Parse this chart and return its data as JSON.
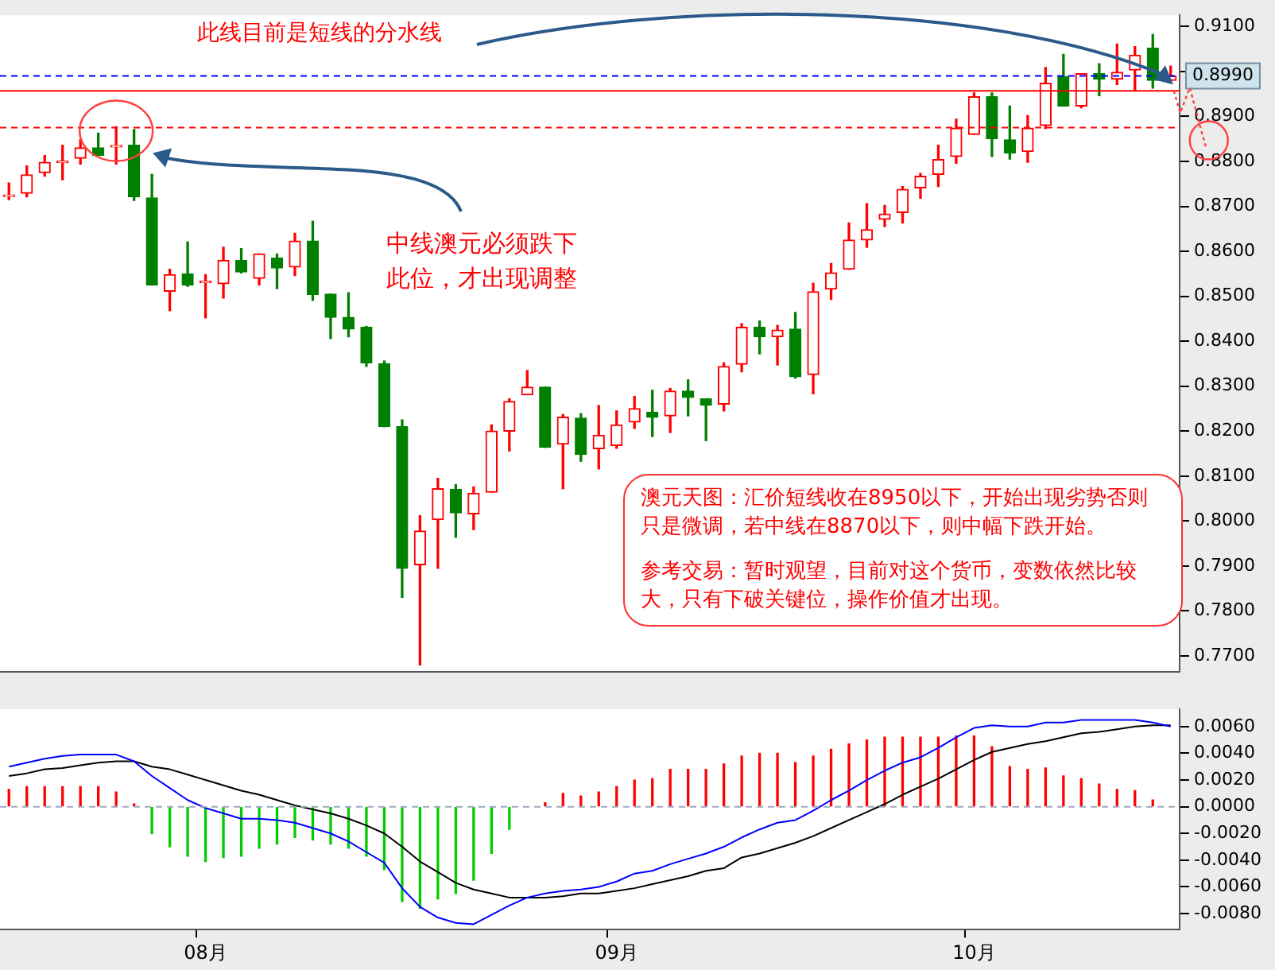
{
  "chart_data": [
    {
      "type": "candlestick",
      "categories": [
        null,
        null,
        null,
        null,
        null,
        null,
        null,
        null,
        null,
        null,
        null,
        null,
        null,
        null,
        null,
        null,
        null,
        null,
        null,
        null,
        null,
        null,
        null,
        null,
        null,
        null,
        null,
        null,
        null,
        null,
        null,
        null,
        null,
        null,
        null,
        null,
        null,
        null,
        null,
        null,
        null,
        null,
        null,
        null,
        null,
        null,
        null,
        null,
        null,
        null,
        null,
        null,
        null,
        null,
        null,
        null,
        null,
        null,
        null,
        null,
        null,
        null,
        null,
        null,
        null,
        null
      ],
      "ohlc": [
        [
          0.8722,
          0.8752,
          0.8715,
          0.8724
        ],
        [
          0.8729,
          0.879,
          0.8721,
          0.877
        ],
        [
          0.8775,
          0.8813,
          0.8767,
          0.8798
        ],
        [
          0.8797,
          0.8836,
          0.8759,
          0.88
        ],
        [
          0.8807,
          0.8848,
          0.8794,
          0.883
        ],
        [
          0.883,
          0.8863,
          0.8813,
          0.8813
        ],
        [
          0.8832,
          0.8877,
          0.8794,
          0.8834
        ],
        [
          0.8836,
          0.8871,
          0.8713,
          0.8721
        ],
        [
          0.8719,
          0.8771,
          0.8525,
          0.8525
        ],
        [
          0.8511,
          0.856,
          0.8468,
          0.8548
        ],
        [
          0.855,
          0.8621,
          0.8522,
          0.8525
        ],
        [
          0.853,
          0.8548,
          0.8452,
          0.8532
        ],
        [
          0.8528,
          0.8609,
          0.8496,
          0.858
        ],
        [
          0.858,
          0.8606,
          0.8552,
          0.8554
        ],
        [
          0.854,
          0.8594,
          0.8525,
          0.8594
        ],
        [
          0.8585,
          0.8594,
          0.8517,
          0.8563
        ],
        [
          0.8565,
          0.864,
          0.8546,
          0.8623
        ],
        [
          0.8623,
          0.8667,
          0.8491,
          0.8504
        ],
        [
          0.8505,
          0.8505,
          0.8406,
          0.8453
        ],
        [
          0.8453,
          0.8508,
          0.841,
          0.8427
        ],
        [
          0.8431,
          0.8433,
          0.8344,
          0.8352
        ],
        [
          0.835,
          0.8356,
          0.821,
          0.821
        ],
        [
          0.821,
          0.8225,
          0.783,
          0.7895
        ],
        [
          0.7903,
          0.8012,
          0.768,
          0.7978
        ],
        [
          0.8003,
          0.8095,
          0.7895,
          0.8072
        ],
        [
          0.807,
          0.8081,
          0.7964,
          0.8018
        ],
        [
          0.8016,
          0.8076,
          0.7981,
          0.8062
        ],
        [
          0.8064,
          0.8214,
          0.8064,
          0.82
        ],
        [
          0.82,
          0.8272,
          0.8156,
          0.8266
        ],
        [
          0.8281,
          0.8335,
          0.8281,
          0.8298
        ],
        [
          0.8298,
          0.8298,
          0.8164,
          0.8164
        ],
        [
          0.8171,
          0.8237,
          0.8072,
          0.8231
        ],
        [
          0.8229,
          0.8239,
          0.8133,
          0.8148
        ],
        [
          0.8161,
          0.8257,
          0.8116,
          0.8191
        ],
        [
          0.8168,
          0.8245,
          0.8162,
          0.8214
        ],
        [
          0.822,
          0.8277,
          0.8206,
          0.825
        ],
        [
          0.8242,
          0.8291,
          0.8188,
          0.8231
        ],
        [
          0.8234,
          0.8295,
          0.8197,
          0.8289
        ],
        [
          0.8289,
          0.8314,
          0.8234,
          0.8275
        ],
        [
          0.8272,
          0.8272,
          0.8179,
          0.8258
        ],
        [
          0.826,
          0.8352,
          0.8245,
          0.8344
        ],
        [
          0.8349,
          0.8439,
          0.8332,
          0.8431
        ],
        [
          0.8431,
          0.8445,
          0.8372,
          0.841
        ],
        [
          0.841,
          0.8435,
          0.8347,
          0.8425
        ],
        [
          0.8427,
          0.8464,
          0.8318,
          0.8321
        ],
        [
          0.8326,
          0.8529,
          0.8283,
          0.851
        ],
        [
          0.8516,
          0.8573,
          0.8493,
          0.8552
        ],
        [
          0.856,
          0.8663,
          0.856,
          0.8625
        ],
        [
          0.8625,
          0.8706,
          0.8609,
          0.8648
        ],
        [
          0.8671,
          0.8702,
          0.8655,
          0.8683
        ],
        [
          0.8686,
          0.8744,
          0.8663,
          0.8738
        ],
        [
          0.8741,
          0.8773,
          0.8718,
          0.8767
        ],
        [
          0.8771,
          0.8836,
          0.8744,
          0.8804
        ],
        [
          0.8811,
          0.8894,
          0.8796,
          0.8874
        ],
        [
          0.886,
          0.8952,
          0.886,
          0.8944
        ],
        [
          0.8944,
          0.8952,
          0.8811,
          0.885
        ],
        [
          0.8848,
          0.8923,
          0.8805,
          0.8819
        ],
        [
          0.8822,
          0.8902,
          0.8798,
          0.8874
        ],
        [
          0.888,
          0.9009,
          0.8873,
          0.8974
        ],
        [
          0.8989,
          0.9038,
          0.8923,
          0.8923
        ],
        [
          0.8923,
          0.8995,
          0.8919,
          0.8995
        ],
        [
          0.8995,
          0.9017,
          0.8946,
          0.8983
        ],
        [
          0.8983,
          0.9061,
          0.8971,
          0.8998
        ],
        [
          0.9003,
          0.9055,
          0.8957,
          0.9036
        ],
        [
          0.9052,
          0.9082,
          0.8963,
          0.898
        ],
        [
          0.898,
          0.9012,
          0.8977,
          0.899
        ]
      ],
      "colors": [
        "#ff0000",
        "#ff0000",
        "#ff0000",
        "#ff0000",
        "#ff0000",
        "#008000",
        "#ff0000",
        "#008000",
        "#008000",
        "#ff0000",
        "#008000",
        "#ff0000",
        "#ff0000",
        "#008000",
        "#ff0000",
        "#008000",
        "#ff0000",
        "#008000",
        "#008000",
        "#008000",
        "#008000",
        "#008000",
        "#008000",
        "#ff0000",
        "#ff0000",
        "#008000",
        "#ff0000",
        "#ff0000",
        "#ff0000",
        "#ff0000",
        "#008000",
        "#ff0000",
        "#008000",
        "#ff0000",
        "#ff0000",
        "#ff0000",
        "#008000",
        "#ff0000",
        "#008000",
        "#008000",
        "#ff0000",
        "#ff0000",
        "#008000",
        "#ff0000",
        "#008000",
        "#ff0000",
        "#ff0000",
        "#ff0000",
        "#ff0000",
        "#ff0000",
        "#ff0000",
        "#ff0000",
        "#ff0000",
        "#ff0000",
        "#ff0000",
        "#008000",
        "#008000",
        "#ff0000",
        "#ff0000",
        "#008000",
        "#ff0000",
        "#008000",
        "#ff0000",
        "#ff0000",
        "#008000",
        "#ff0000"
      ],
      "ylim": [
        0.7665,
        0.9125
      ],
      "yticks": [
        {
          "value": 0.77,
          "label": "0.7700"
        },
        {
          "value": 0.78,
          "label": "0.7800"
        },
        {
          "value": 0.79,
          "label": "0.7900"
        },
        {
          "value": 0.8,
          "label": "0.8000"
        },
        {
          "value": 0.81,
          "label": "0.8100"
        },
        {
          "value": 0.82,
          "label": "0.8200"
        },
        {
          "value": 0.83,
          "label": "0.8300"
        },
        {
          "value": 0.84,
          "label": "0.8400"
        },
        {
          "value": 0.85,
          "label": "0.8500"
        },
        {
          "value": 0.86,
          "label": "0.8600"
        },
        {
          "value": 0.87,
          "label": "0.8700"
        },
        {
          "value": 0.88,
          "label": "0.8800"
        },
        {
          "value": 0.89,
          "label": "0.8900"
        },
        {
          "value": 0.9,
          "label": null
        },
        {
          "value": 0.91,
          "label": "0.9100"
        }
      ],
      "tick_labels": "y",
      "ref_lines": [
        {
          "axis": "y",
          "value": 0.8875,
          "color": "#ff0000",
          "line_style": "dashed"
        },
        {
          "axis": "y",
          "value": 0.8957,
          "color": "#ff0000",
          "line_style": "solid"
        },
        {
          "axis": "y",
          "value": 0.899,
          "label": "0.8990",
          "color": "#0000ff",
          "line_style": "dashed"
        }
      ],
      "annotations": [
        "此线目前是短线的分水线",
        "中线澳元必须跌下此位，才出现调整",
        "澳元天图：汇价短线收在8950以下，开始出现劣势否则只是微调，若中线在8870以下，则中幅下跌开始。",
        "参考交易：暂时观望，目前对这个货币，变数依然比较大，只有下破关键位，操作价值才出现。"
      ]
    },
    {
      "type": "bar",
      "categories": [
        null,
        null,
        null,
        null,
        null,
        null,
        null,
        null,
        null,
        null,
        null,
        "08月",
        null,
        null,
        null,
        null,
        null,
        null,
        null,
        null,
        null,
        null,
        null,
        null,
        null,
        null,
        null,
        null,
        null,
        null,
        null,
        null,
        null,
        null,
        "09月",
        null,
        null,
        null,
        null,
        null,
        null,
        null,
        null,
        null,
        null,
        null,
        null,
        null,
        null,
        null,
        null,
        null,
        null,
        null,
        "10月",
        null,
        null,
        null,
        null,
        null,
        null,
        null,
        null,
        null,
        null,
        null
      ],
      "series": [
        {
          "type": "bar",
          "colors": [
            "#ff0000",
            "#ff0000",
            "#ff0000",
            "#ff0000",
            "#ff0000",
            "#ff0000",
            "#ff0000",
            "#ff0000",
            "#00cc00",
            "#00cc00",
            "#00cc00",
            "#00cc00",
            "#00cc00",
            "#00cc00",
            "#00cc00",
            "#00cc00",
            "#00cc00",
            "#00cc00",
            "#00cc00",
            "#00cc00",
            "#00cc00",
            "#00cc00",
            "#00cc00",
            "#00cc00",
            "#00cc00",
            "#00cc00",
            "#00cc00",
            "#00cc00",
            "#00cc00",
            "#ff0000",
            "#ff0000",
            "#ff0000",
            "#ff0000",
            "#ff0000",
            "#ff0000",
            "#ff0000",
            "#ff0000",
            "#ff0000",
            "#ff0000",
            "#ff0000",
            "#ff0000",
            "#ff0000",
            "#ff0000",
            "#ff0000",
            "#ff0000",
            "#ff0000",
            "#ff0000",
            "#ff0000",
            "#ff0000",
            "#ff0000",
            "#ff0000",
            "#ff0000",
            "#ff0000",
            "#ff0000",
            "#ff0000",
            "#ff0000",
            "#ff0000",
            "#ff0000",
            "#ff0000",
            "#ff0000",
            "#ff0000",
            "#ff0000",
            "#ff0000",
            "#ff0000",
            "#ff0000",
            "#ff0000"
          ],
          "values": [
            0.0013,
            0.0015,
            0.0015,
            0.0015,
            0.0015,
            0.0015,
            0.0011,
            0.0002,
            -0.002,
            -0.003,
            -0.0037,
            -0.0041,
            -0.0038,
            -0.0037,
            -0.0031,
            -0.0028,
            -0.0023,
            -0.0025,
            -0.0028,
            -0.0031,
            -0.0037,
            -0.0047,
            -0.0071,
            -0.0076,
            -0.0069,
            -0.0065,
            -0.0055,
            -0.0035,
            -0.0017,
            0,
            0.0003,
            0.001,
            0.0008,
            0.0011,
            0.0015,
            0.002,
            0.0021,
            0.0028,
            0.0028,
            0.0028,
            0.0032,
            0.0038,
            0.004,
            0.004,
            0.0033,
            0.0038,
            0.0043,
            0.0047,
            0.005,
            0.0052,
            0.0052,
            0.0052,
            0.0052,
            0.0053,
            0.0053,
            0.0045,
            0.003,
            0.0028,
            0.0029,
            0.0023,
            0.0021,
            0.0017,
            0.0013,
            0.0012,
            0.0005,
            0
          ]
        },
        {
          "type": "line",
          "color": "#0000ff",
          "values": [
            0.003,
            0.0033,
            0.0036,
            0.0038,
            0.0039,
            0.0039,
            0.0039,
            0.0034,
            0.0023,
            0.0014,
            0.0005,
            -0.0001,
            -0.0005,
            -0.0009,
            -0.0009,
            -0.001,
            -0.0012,
            -0.0016,
            -0.002,
            -0.0026,
            -0.0034,
            -0.0042,
            -0.0061,
            -0.0075,
            -0.0083,
            -0.0087,
            -0.0088,
            -0.0081,
            -0.0074,
            -0.0068,
            -0.0065,
            -0.0063,
            -0.0062,
            -0.006,
            -0.0056,
            -0.005,
            -0.0048,
            -0.0043,
            -0.0039,
            -0.0035,
            -0.003,
            -0.0023,
            -0.0017,
            -0.0012,
            -0.001,
            -0.0003,
            0.0005,
            0.0012,
            0.002,
            0.0027,
            0.0033,
            0.0037,
            0.0044,
            0.0052,
            0.0059,
            0.0061,
            0.006,
            0.006,
            0.0063,
            0.0063,
            0.0065,
            0.0065,
            0.0065,
            0.0065,
            0.0063,
            0.006
          ]
        },
        {
          "type": "line",
          "color": "#000000",
          "values": [
            0.0023,
            0.0025,
            0.0028,
            0.0029,
            0.0031,
            0.0033,
            0.0034,
            0.0034,
            0.003,
            0.0028,
            0.0024,
            0.002,
            0.0016,
            0.0012,
            0.0009,
            0.0005,
            0.0001,
            -0.0002,
            -0.0005,
            -0.0009,
            -0.0014,
            -0.002,
            -0.003,
            -0.0041,
            -0.0049,
            -0.0057,
            -0.0062,
            -0.0065,
            -0.0068,
            -0.0068,
            -0.0068,
            -0.0067,
            -0.0065,
            -0.0065,
            -0.0063,
            -0.0061,
            -0.0058,
            -0.0055,
            -0.0052,
            -0.0048,
            -0.0046,
            -0.0038,
            -0.0035,
            -0.0031,
            -0.0027,
            -0.0022,
            -0.0016,
            -0.001,
            -0.0004,
            0.0002,
            0.0009,
            0.0015,
            0.0021,
            0.0028,
            0.0035,
            0.0041,
            0.0044,
            0.0047,
            0.0049,
            0.0052,
            0.0055,
            0.0056,
            0.0058,
            0.006,
            0.0061,
            0.0061
          ]
        }
      ],
      "ylim": [
        -0.0092,
        0.0073
      ],
      "yticks": [
        {
          "value": -0.008,
          "label": "-0.0080"
        },
        {
          "value": -0.006,
          "label": "-0.0060"
        },
        {
          "value": -0.004,
          "label": "-0.0040"
        },
        {
          "value": -0.002,
          "label": "-0.0020"
        },
        {
          "value": 0,
          "label": "0.0000"
        },
        {
          "value": 0.002,
          "label": "0.0020"
        },
        {
          "value": 0.004,
          "label": "0.0040"
        },
        {
          "value": 0.006,
          "label": "0.0060"
        }
      ],
      "marker": "none",
      "ref_lines": [
        {
          "axis": "y",
          "value": 0,
          "color": "#a0a8c0",
          "line_style": "dashed"
        }
      ]
    }
  ]
}
